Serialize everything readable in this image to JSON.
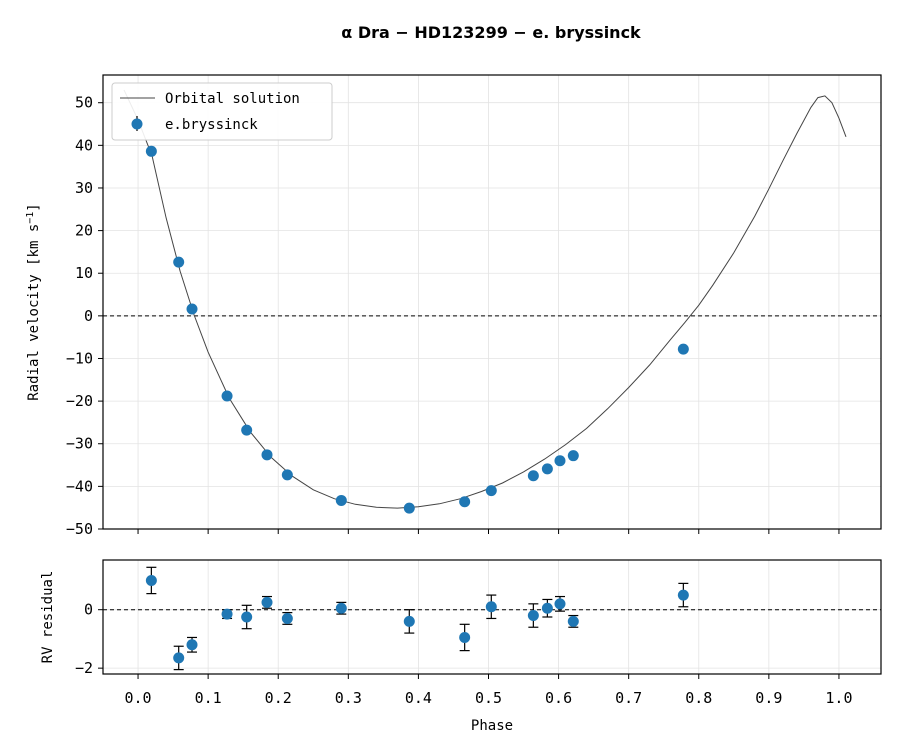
{
  "title": "α  Dra  −  HD123299  −  e. bryssinck",
  "chart_data": {
    "type": "scatter",
    "title": "α  Dra  −  HD123299  −  e. bryssinck",
    "xlabel": "Phase",
    "xlim": [
      -0.05,
      1.06
    ],
    "x_ticks": [
      "0.0",
      "0.1",
      "0.2",
      "0.3",
      "0.4",
      "0.5",
      "0.6",
      "0.7",
      "0.8",
      "0.9",
      "1.0"
    ],
    "grid": true,
    "legend": {
      "position": "top-left",
      "entries": [
        "Orbital solution",
        "e.bryssinck"
      ]
    },
    "top_panel": {
      "ylabel": "Radial velocity [km s−1]",
      "ylim": [
        -50,
        56.5
      ],
      "y_ticks": [
        "50",
        "40",
        "30",
        "20",
        "10",
        "0",
        "−10",
        "−20",
        "−30",
        "−40",
        "−50"
      ],
      "zero_line": true,
      "series": [
        {
          "name": "Orbital solution",
          "type": "line",
          "color": "#444444",
          "x": [
            -0.02,
            0.0,
            0.02,
            0.04,
            0.06,
            0.08,
            0.1,
            0.13,
            0.16,
            0.19,
            0.22,
            0.25,
            0.28,
            0.31,
            0.34,
            0.37,
            0.4,
            0.43,
            0.46,
            0.49,
            0.52,
            0.55,
            0.58,
            0.61,
            0.64,
            0.67,
            0.7,
            0.73,
            0.76,
            0.78,
            0.8,
            0.82,
            0.85,
            0.88,
            0.9,
            0.92,
            0.94,
            0.96,
            0.97,
            0.98,
            0.99,
            1.0,
            1.01
          ],
          "y": [
            53,
            46,
            37.5,
            23,
            10.5,
            0.2,
            -8.5,
            -19.3,
            -27.2,
            -33.2,
            -37.6,
            -40.8,
            -42.9,
            -44.2,
            -44.9,
            -45.1,
            -44.8,
            -44.1,
            -42.9,
            -41.2,
            -39.2,
            -36.6,
            -33.6,
            -30.2,
            -26.4,
            -21.8,
            -16.8,
            -11.5,
            -5.5,
            -1.6,
            2.5,
            7.2,
            14.8,
            23.4,
            29.8,
            36.4,
            42.8,
            48.9,
            51.2,
            51.6,
            50.0,
            46.4,
            42.0
          ]
        },
        {
          "name": "e.bryssinck",
          "type": "scatter",
          "color": "#1f77b4",
          "x": [
            0.019,
            0.058,
            0.077,
            0.127,
            0.155,
            0.184,
            0.213,
            0.29,
            0.387,
            0.466,
            0.504,
            0.564,
            0.584,
            0.602,
            0.621,
            0.778
          ],
          "y": [
            38.6,
            12.6,
            1.6,
            -18.8,
            -26.8,
            -32.6,
            -37.3,
            -43.3,
            -45.1,
            -43.6,
            -41.0,
            -37.5,
            -35.9,
            -34.0,
            -32.8,
            -7.8
          ],
          "yerr": [
            0.3,
            0.3,
            0.3,
            0.3,
            0.3,
            0.3,
            0.3,
            0.3,
            0.3,
            0.3,
            0.3,
            0.3,
            0.3,
            0.3,
            0.3,
            0.3
          ]
        }
      ]
    },
    "bottom_panel": {
      "ylabel": "RV residual",
      "ylim": [
        -2.2,
        1.7
      ],
      "y_ticks": [
        "0",
        "−2"
      ],
      "zero_line": true,
      "series": [
        {
          "name": "e.bryssinck",
          "type": "errorbar",
          "color": "#1f77b4",
          "x": [
            0.019,
            0.058,
            0.077,
            0.127,
            0.155,
            0.184,
            0.213,
            0.29,
            0.387,
            0.466,
            0.504,
            0.564,
            0.584,
            0.602,
            0.621,
            0.778
          ],
          "y": [
            1.0,
            -1.65,
            -1.2,
            -0.15,
            -0.25,
            0.25,
            -0.3,
            0.05,
            -0.4,
            -0.95,
            0.1,
            -0.2,
            0.05,
            0.2,
            -0.4,
            0.5
          ],
          "yerr": [
            0.45,
            0.4,
            0.25,
            0.15,
            0.4,
            0.2,
            0.2,
            0.2,
            0.4,
            0.45,
            0.4,
            0.4,
            0.3,
            0.25,
            0.2,
            0.4
          ]
        }
      ]
    }
  }
}
